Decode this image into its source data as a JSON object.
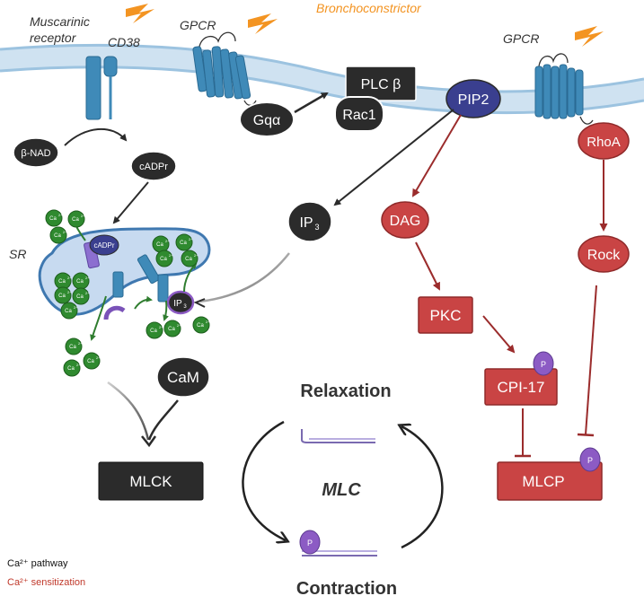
{
  "colors": {
    "black_node": "#2b2b2b",
    "red_node": "#c94444",
    "red_stroke": "#8f2a2a",
    "blue_receptor": "#3f8ab8",
    "purple": "#8c5bc4",
    "navy_pip": "#3a3f8f",
    "ca_green": "#2f8a2f",
    "membrane": "#cfe2f1",
    "orange": "#f39422",
    "sr_fill": "#c7daf0"
  },
  "labels": {
    "muscarinic_receptor_1": "Muscarinic",
    "muscarinic_receptor_2": "receptor",
    "cd38": "CD38",
    "gpcr_left": "GPCR",
    "gpcr_right": "GPCR",
    "bronchoconstrictor": "Bronchoconstrictor",
    "sr": "SR",
    "relaxation": "Relaxation",
    "contraction": "Contraction",
    "mlc": "MLC"
  },
  "nodes": {
    "gq": "Gqα",
    "plc": "PLC β",
    "rac1": "Rac1",
    "pip2": "PIP2",
    "rhoa": "RhoA",
    "bnad": "β-NAD",
    "cadpr": "cADPr",
    "cadpr_sr": "cADPr",
    "ip3": "IP",
    "ip3_sub": "3",
    "ip3_sr": "IP",
    "ip3_sr_sub": "3",
    "dag": "DAG",
    "rock": "Rock",
    "pkc": "PKC",
    "cpi17": "CPI-17",
    "cam": "CaM",
    "mlck": "MLCK",
    "mlcp": "MLCP",
    "phospho": "P"
  },
  "ca": {
    "base": "Ca",
    "sup": "2+"
  },
  "legend": {
    "ca_pathway": "Ca²⁺ pathway",
    "ca_sensitization": "Ca²⁺ sensitization",
    "ca_pathway_color": "#111111",
    "ca_sensitization_color": "#c0392b"
  }
}
